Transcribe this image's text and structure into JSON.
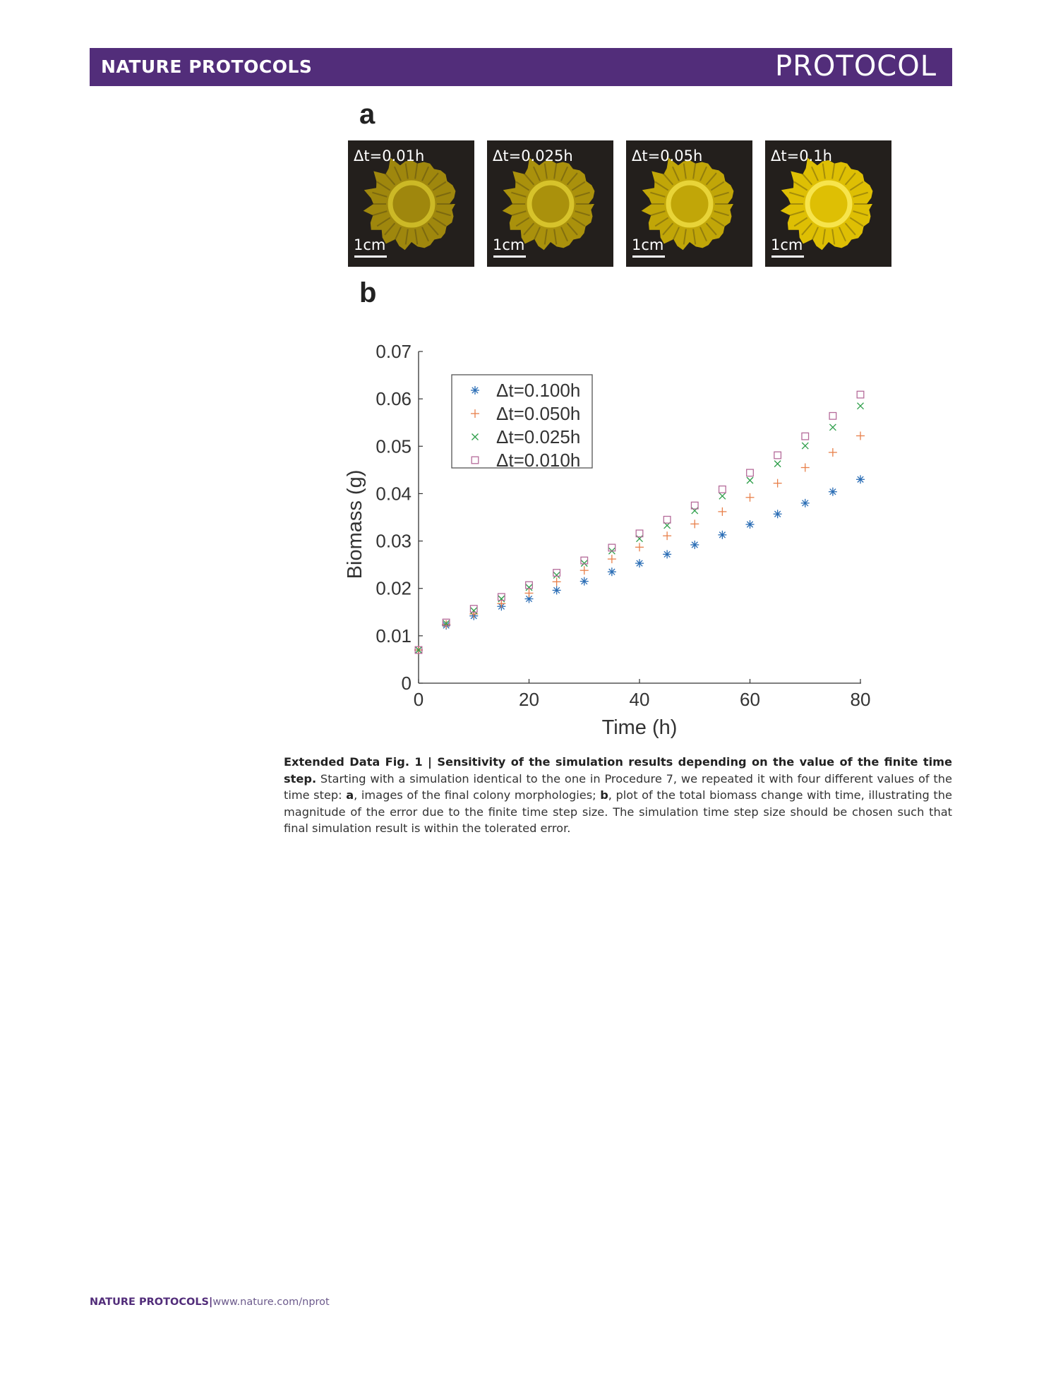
{
  "header": {
    "journal": "NATURE PROTOCOLS",
    "article_type": "PROTOCOL"
  },
  "panel_a": {
    "letter": "a",
    "images": [
      {
        "label": "Δt=0.01h",
        "scale": "1cm",
        "brightness": 0.45
      },
      {
        "label": "Δt=0.025h",
        "scale": "1cm",
        "brightness": 0.55
      },
      {
        "label": "Δt=0.05h",
        "scale": "1cm",
        "brightness": 0.75
      },
      {
        "label": "Δt=0.1h",
        "scale": "1cm",
        "brightness": 1.0
      }
    ]
  },
  "panel_b": {
    "letter": "b"
  },
  "chart_data": {
    "type": "scatter",
    "xlabel": "Time (h)",
    "ylabel": "Biomass (g)",
    "xlim": [
      0,
      80
    ],
    "ylim": [
      0,
      0.07
    ],
    "xticks": [
      "0",
      "20",
      "40",
      "60",
      "80"
    ],
    "yticks": [
      "0",
      "0.01",
      "0.02",
      "0.03",
      "0.04",
      "0.05",
      "0.06",
      "0.07"
    ],
    "legend_position": "top-left",
    "grid": false,
    "x": [
      0,
      5,
      10,
      15,
      20,
      25,
      30,
      35,
      40,
      45,
      50,
      55,
      60,
      65,
      70,
      75,
      80
    ],
    "series": [
      {
        "name": "Δt=0.100h",
        "marker": "asterisk",
        "color": "#2a6db5",
        "values": [
          0.007,
          0.0122,
          0.0142,
          0.0162,
          0.0178,
          0.0196,
          0.0215,
          0.0235,
          0.0253,
          0.0272,
          0.0292,
          0.0313,
          0.0335,
          0.0357,
          0.038,
          0.0404,
          0.043
        ]
      },
      {
        "name": "Δt=0.050h",
        "marker": "plus",
        "color": "#e8804a",
        "values": [
          0.007,
          0.0124,
          0.0146,
          0.0168,
          0.019,
          0.0214,
          0.0238,
          0.0262,
          0.0287,
          0.0311,
          0.0336,
          0.0362,
          0.0392,
          0.0422,
          0.0455,
          0.0487,
          0.0522
        ]
      },
      {
        "name": "Δt=0.025h",
        "marker": "x",
        "color": "#2e9e4a",
        "values": [
          0.007,
          0.0126,
          0.0153,
          0.0178,
          0.0202,
          0.0228,
          0.0253,
          0.0279,
          0.0305,
          0.0333,
          0.0364,
          0.0395,
          0.0428,
          0.0463,
          0.0501,
          0.054,
          0.0585
        ]
      },
      {
        "name": "Δt=0.010h",
        "marker": "square",
        "color": "#b56b9a",
        "values": [
          0.007,
          0.0128,
          0.0157,
          0.0182,
          0.0207,
          0.0233,
          0.0259,
          0.0286,
          0.0316,
          0.0345,
          0.0375,
          0.0409,
          0.0444,
          0.0481,
          0.0521,
          0.0564,
          0.0609
        ]
      }
    ]
  },
  "caption": {
    "title": "Extended Data Fig. 1 | Sensitivity of the simulation results depending on the value of the finite time step.",
    "text_1": " Starting with a simulation identical to the one in Procedure 7, we repeated it with four different values of the time step: ",
    "a": "a",
    "text_2": ", images of the final colony morphologies; ",
    "b": "b",
    "text_3": ", plot of the total biomass change with time, illustrating the magnitude of the error due to the finite time step size. The simulation time step size should be chosen such that final simulation result is within the tolerated error."
  },
  "footer": {
    "journal": "NATURE PROTOCOLS",
    "separator": "|",
    "url": "www.nature.com/nprot"
  }
}
